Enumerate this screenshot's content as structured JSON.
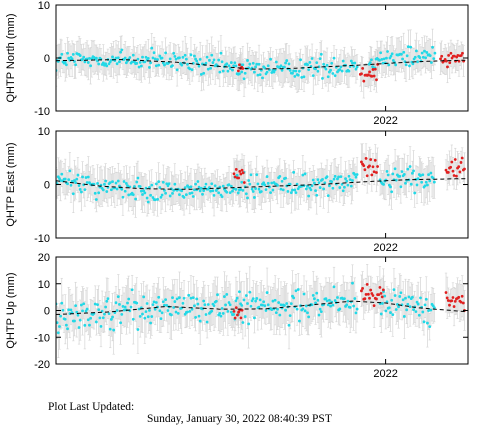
{
  "chart_data": [
    {
      "type": "scatter",
      "ylabel": "QHTP North (mm)",
      "ylim": [
        -10,
        10
      ],
      "yticks": [
        -10,
        0,
        10
      ],
      "xlim": [
        2019.0,
        2022.75
      ],
      "xticks": [
        {
          "value": 2022.0,
          "label": "2022"
        }
      ],
      "grid": false,
      "trend": [
        [
          2019.0,
          -0.5
        ],
        [
          2019.6,
          -0.3
        ],
        [
          2020.1,
          -0.8
        ],
        [
          2020.5,
          -1.6
        ],
        [
          2020.8,
          -2.1
        ],
        [
          2021.1,
          -2.0
        ],
        [
          2021.4,
          -1.7
        ],
        [
          2021.8,
          -1.3
        ],
        [
          2022.1,
          -0.9
        ],
        [
          2022.4,
          -0.6
        ],
        [
          2022.75,
          -0.4
        ]
      ],
      "series": [
        {
          "style": "cyan",
          "start": 2019.0,
          "end": 2021.75,
          "step": 0.0105,
          "base": "trend",
          "amp": 1.9,
          "err": 3.0
        },
        {
          "style": "red",
          "start": 2020.66,
          "end": 2020.7,
          "step": 0.01,
          "base": "trend",
          "amp": 0.6,
          "err": 2.5
        },
        {
          "style": "cyan",
          "start": 2021.85,
          "end": 2022.45,
          "step": 0.0105,
          "base": "trend",
          "amp": 2.2,
          "err": 3.0,
          "offset": 1.0
        },
        {
          "style": "red",
          "start": 2021.77,
          "end": 2021.93,
          "step": 0.0105,
          "base": "trend",
          "amp": 1.6,
          "err": 2.8,
          "offset": -1.4
        },
        {
          "style": "red",
          "start": 2022.5,
          "end": 2022.72,
          "step": 0.0105,
          "base": "trend",
          "amp": 1.4,
          "err": 2.5,
          "offset": 0.6
        }
      ]
    },
    {
      "type": "scatter",
      "ylabel": "QHTP East (mm)",
      "ylim": [
        -10,
        10
      ],
      "yticks": [
        -10,
        0,
        10
      ],
      "xlim": [
        2019.0,
        2022.75
      ],
      "xticks": [
        {
          "value": 2022.0,
          "label": "2022"
        }
      ],
      "grid": false,
      "trend": [
        [
          2019.0,
          0.7
        ],
        [
          2019.4,
          -0.3
        ],
        [
          2019.8,
          -0.8
        ],
        [
          2020.2,
          -0.9
        ],
        [
          2020.6,
          -0.6
        ],
        [
          2021.0,
          -0.3
        ],
        [
          2021.4,
          0.0
        ],
        [
          2021.8,
          0.5
        ],
        [
          2022.2,
          0.9
        ],
        [
          2022.75,
          1.1
        ]
      ],
      "series": [
        {
          "style": "cyan",
          "start": 2019.0,
          "end": 2021.75,
          "step": 0.0105,
          "base": "trend",
          "amp": 2.0,
          "err": 3.2
        },
        {
          "style": "red",
          "start": 2020.62,
          "end": 2020.72,
          "step": 0.0105,
          "base": "trend",
          "amp": 1.2,
          "err": 2.8,
          "offset": 2.5
        },
        {
          "style": "cyan",
          "start": 2021.95,
          "end": 2022.45,
          "step": 0.0105,
          "base": "trend",
          "amp": 2.0,
          "err": 3.2
        },
        {
          "style": "red",
          "start": 2021.78,
          "end": 2021.93,
          "step": 0.0105,
          "base": "trend",
          "amp": 1.6,
          "err": 3.2,
          "offset": 2.6
        },
        {
          "style": "red",
          "start": 2022.55,
          "end": 2022.72,
          "step": 0.0105,
          "base": "trend",
          "amp": 1.3,
          "err": 2.8,
          "offset": 2.0
        }
      ]
    },
    {
      "type": "scatter",
      "ylabel": "QHTP Up (mm)",
      "ylim": [
        -20,
        20
      ],
      "yticks": [
        -20,
        -10,
        0,
        10,
        20
      ],
      "xlim": [
        2019.0,
        2022.75
      ],
      "xticks": [
        {
          "value": 2022.0,
          "label": "2022"
        }
      ],
      "grid": false,
      "trend": [
        [
          2019.0,
          -1.5
        ],
        [
          2019.5,
          -0.5
        ],
        [
          2020.0,
          1.5
        ],
        [
          2020.5,
          0.5
        ],
        [
          2020.9,
          0.6
        ],
        [
          2021.3,
          2.0
        ],
        [
          2021.7,
          3.5
        ],
        [
          2022.0,
          2.8
        ],
        [
          2022.3,
          1.0
        ],
        [
          2022.75,
          -0.5
        ]
      ],
      "series": [
        {
          "style": "cyan",
          "start": 2019.0,
          "end": 2021.75,
          "step": 0.0105,
          "base": "trend",
          "amp": 5.5,
          "err": 8.0
        },
        {
          "style": "red",
          "start": 2020.62,
          "end": 2020.7,
          "step": 0.0105,
          "base": "trend",
          "amp": 3.0,
          "err": 6.0,
          "offset": -1.0
        },
        {
          "style": "cyan",
          "start": 2021.95,
          "end": 2022.45,
          "step": 0.0105,
          "base": "trend",
          "amp": 5.0,
          "err": 7.5
        },
        {
          "style": "red",
          "start": 2021.78,
          "end": 2021.98,
          "step": 0.0105,
          "base": "trend",
          "amp": 3.5,
          "err": 7.0,
          "offset": 3.5
        },
        {
          "style": "red",
          "start": 2022.55,
          "end": 2022.72,
          "step": 0.0105,
          "base": "trend",
          "amp": 3.0,
          "err": 6.5,
          "offset": 4.0
        }
      ]
    }
  ],
  "colors": {
    "cyan": "#22d8e6",
    "red": "#e02020",
    "errorbar": "#d4d4d4",
    "trend": "#000000",
    "frame": "#000000"
  },
  "footer": {
    "label": "Plot Last Updated:",
    "value": "Sunday, January 30, 2022 08:40:39 PST"
  }
}
